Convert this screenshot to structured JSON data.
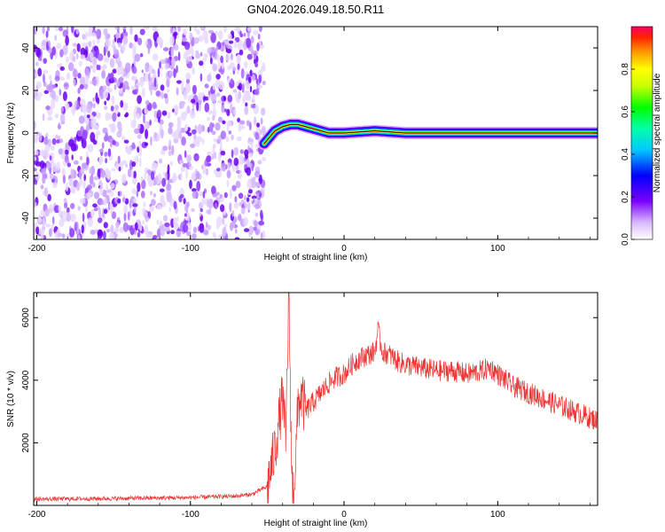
{
  "title": "GN04.2026.049.18.50.R11",
  "chart_data": [
    {
      "type": "heatmap",
      "xlabel": "Height of straight line (km)",
      "ylabel": "Frequency (Hz)",
      "xlim": [
        -202,
        165
      ],
      "ylim": [
        -50,
        50
      ],
      "x_ticks": [
        -200,
        -100,
        0,
        100
      ],
      "y_ticks": [
        -40,
        -20,
        0,
        20,
        40
      ],
      "noise_region_x": [
        -202,
        -52
      ],
      "ridge": {
        "x": [
          -52,
          -45,
          -40,
          -35,
          -30,
          -25,
          -20,
          -15,
          -10,
          0,
          20,
          40,
          60,
          80,
          100,
          130,
          165
        ],
        "frequency": [
          -5,
          1,
          3,
          4,
          4,
          3,
          2,
          1,
          0,
          0,
          1,
          0,
          0,
          0,
          0,
          0,
          0
        ]
      },
      "colorbar": {
        "label": "Normalized spectral amplitude",
        "range": [
          0,
          1
        ],
        "ticks": [
          0.0,
          0.2,
          0.4,
          0.6,
          0.8
        ],
        "tick_labels": [
          "0.0",
          "0.2",
          "0.4",
          "0.6",
          "0.8"
        ]
      }
    },
    {
      "type": "line",
      "xlabel": "Height of straight line (km)",
      "ylabel": "SNR (10 * v/v)",
      "xlim": [
        -202,
        165
      ],
      "ylim": [
        0,
        6800
      ],
      "x_ticks": [
        -200,
        -100,
        0,
        100
      ],
      "y_ticks": [
        2000,
        4000,
        6000
      ],
      "series": [
        {
          "color": "#ee3333",
          "x": [
            -202,
            -150,
            -100,
            -70,
            -60,
            -50,
            -45,
            -40,
            -38,
            -36,
            -35,
            -34,
            -33,
            -32,
            -31,
            -30,
            -28,
            -25,
            -20,
            -15,
            -10,
            -5,
            0,
            5,
            10,
            15,
            20,
            22,
            25,
            30,
            35,
            40,
            50,
            60,
            70,
            80,
            90,
            95,
            100,
            105,
            110,
            120,
            130,
            140,
            150,
            160,
            165
          ],
          "y": [
            200,
            220,
            250,
            300,
            350,
            600,
            1800,
            3500,
            2000,
            6700,
            4000,
            800,
            400,
            1000,
            2000,
            3200,
            3500,
            3000,
            3300,
            3600,
            3900,
            4100,
            4200,
            4500,
            4700,
            4800,
            4900,
            5600,
            4900,
            4800,
            4600,
            4500,
            4400,
            4300,
            4300,
            4200,
            4300,
            4400,
            4200,
            4000,
            3800,
            3600,
            3400,
            3200,
            3000,
            2800,
            2700
          ]
        }
      ]
    }
  ]
}
